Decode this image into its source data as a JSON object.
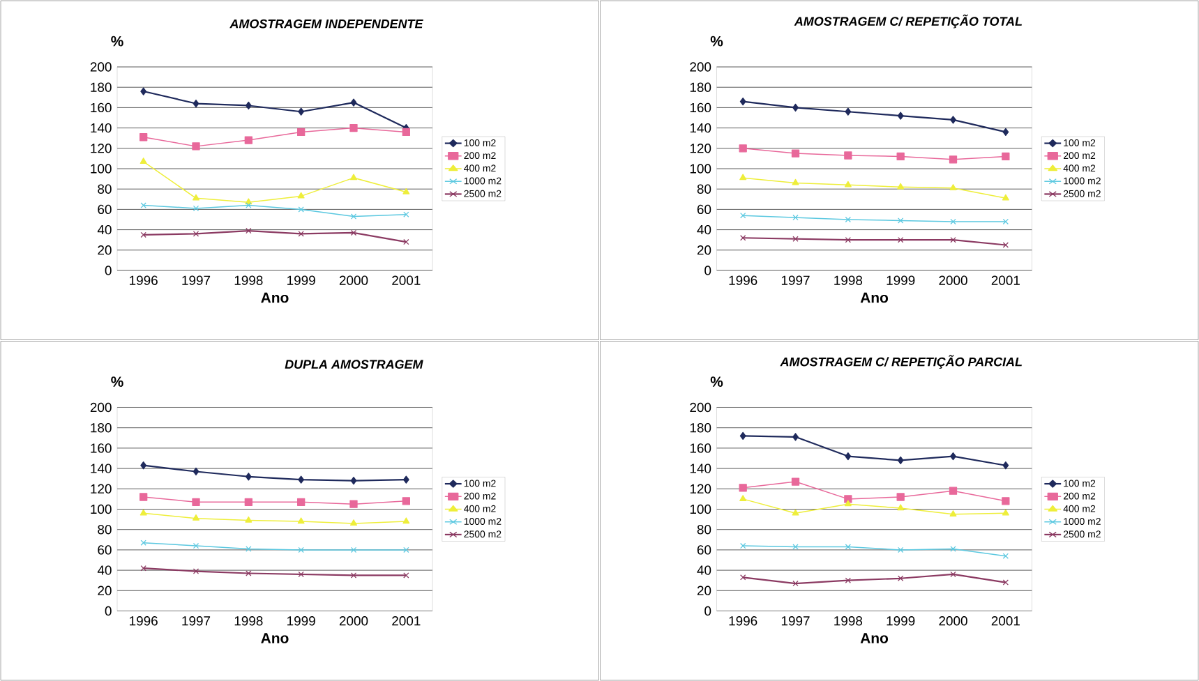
{
  "chart_data": [
    {
      "type": "line",
      "title": "AMOSTRAGEM INDEPENDENTE",
      "xlabel": "Ano",
      "ylabel": "%",
      "categories": [
        "1996",
        "1997",
        "1998",
        "1999",
        "2000",
        "2001"
      ],
      "ylim": [
        0,
        200
      ],
      "yticks": [
        0,
        20,
        40,
        60,
        80,
        100,
        120,
        140,
        160,
        180,
        200
      ],
      "grid": "y",
      "legend": "right",
      "series": [
        {
          "name": "100 m2",
          "color": "#1f2a5c",
          "marker": "diamond",
          "values": [
            176,
            164,
            162,
            156,
            165,
            140
          ]
        },
        {
          "name": "200 m2",
          "color": "#e8689a",
          "marker": "square",
          "values": [
            131,
            122,
            128,
            136,
            140,
            136
          ]
        },
        {
          "name": "400 m2",
          "color": "#eeee3a",
          "marker": "triangle",
          "values": [
            107,
            71,
            67,
            73,
            91,
            77
          ]
        },
        {
          "name": "1000 m2",
          "color": "#5bc8e0",
          "marker": "cross",
          "values": [
            64,
            61,
            64,
            60,
            53,
            55
          ]
        },
        {
          "name": "2500 m2",
          "color": "#8b3a62",
          "marker": "cross",
          "values": [
            35,
            36,
            39,
            36,
            37,
            28
          ]
        }
      ]
    },
    {
      "type": "line",
      "title": "AMOSTRAGEM C/ REPETIÇÃO TOTAL",
      "xlabel": "Ano",
      "ylabel": "%",
      "categories": [
        "1996",
        "1997",
        "1998",
        "1999",
        "2000",
        "2001"
      ],
      "ylim": [
        0,
        200
      ],
      "yticks": [
        0,
        20,
        40,
        60,
        80,
        100,
        120,
        140,
        160,
        180,
        200
      ],
      "grid": "y",
      "legend": "right",
      "series": [
        {
          "name": "100 m2",
          "color": "#1f2a5c",
          "marker": "diamond",
          "values": [
            166,
            160,
            156,
            152,
            148,
            136
          ]
        },
        {
          "name": "200 m2",
          "color": "#e8689a",
          "marker": "square",
          "values": [
            120,
            115,
            113,
            112,
            109,
            112
          ]
        },
        {
          "name": "400 m2",
          "color": "#eeee3a",
          "marker": "triangle",
          "values": [
            91,
            86,
            84,
            82,
            81,
            71
          ]
        },
        {
          "name": "1000 m2",
          "color": "#5bc8e0",
          "marker": "cross",
          "values": [
            54,
            52,
            50,
            49,
            48,
            48
          ]
        },
        {
          "name": "2500 m2",
          "color": "#8b3a62",
          "marker": "cross",
          "values": [
            32,
            31,
            30,
            30,
            30,
            25
          ]
        }
      ]
    },
    {
      "type": "line",
      "title": "DUPLA AMOSTRAGEM",
      "xlabel": "Ano",
      "ylabel": "%",
      "categories": [
        "1996",
        "1997",
        "1998",
        "1999",
        "2000",
        "2001"
      ],
      "ylim": [
        0,
        200
      ],
      "yticks": [
        0,
        20,
        40,
        60,
        80,
        100,
        120,
        140,
        160,
        180,
        200
      ],
      "grid": "y",
      "legend": "right",
      "series": [
        {
          "name": "100 m2",
          "color": "#1f2a5c",
          "marker": "diamond",
          "values": [
            143,
            137,
            132,
            129,
            128,
            129
          ]
        },
        {
          "name": "200 m2",
          "color": "#e8689a",
          "marker": "square",
          "values": [
            112,
            107,
            107,
            107,
            105,
            108
          ]
        },
        {
          "name": "400 m2",
          "color": "#eeee3a",
          "marker": "triangle",
          "values": [
            96,
            91,
            89,
            88,
            86,
            88
          ]
        },
        {
          "name": "1000 m2",
          "color": "#5bc8e0",
          "marker": "cross",
          "values": [
            67,
            64,
            61,
            60,
            60,
            60
          ]
        },
        {
          "name": "2500 m2",
          "color": "#8b3a62",
          "marker": "cross",
          "values": [
            42,
            39,
            37,
            36,
            35,
            35
          ]
        }
      ]
    },
    {
      "type": "line",
      "title": "AMOSTRAGEM C/ REPETIÇÃO PARCIAL",
      "xlabel": "Ano",
      "ylabel": "%",
      "categories": [
        "1996",
        "1997",
        "1998",
        "1999",
        "2000",
        "2001"
      ],
      "ylim": [
        0,
        200
      ],
      "yticks": [
        0,
        20,
        40,
        60,
        80,
        100,
        120,
        140,
        160,
        180,
        200
      ],
      "grid": "y",
      "legend": "right",
      "series": [
        {
          "name": "100 m2",
          "color": "#1f2a5c",
          "marker": "diamond",
          "values": [
            172,
            171,
            152,
            148,
            152,
            143
          ]
        },
        {
          "name": "200 m2",
          "color": "#e8689a",
          "marker": "square",
          "values": [
            121,
            127,
            110,
            112,
            118,
            108
          ]
        },
        {
          "name": "400 m2",
          "color": "#eeee3a",
          "marker": "triangle",
          "values": [
            110,
            96,
            105,
            101,
            95,
            96
          ]
        },
        {
          "name": "1000 m2",
          "color": "#5bc8e0",
          "marker": "cross",
          "values": [
            64,
            63,
            63,
            60,
            61,
            54
          ]
        },
        {
          "name": "2500 m2",
          "color": "#8b3a62",
          "marker": "cross",
          "values": [
            33,
            27,
            30,
            32,
            36,
            28
          ]
        }
      ]
    }
  ]
}
